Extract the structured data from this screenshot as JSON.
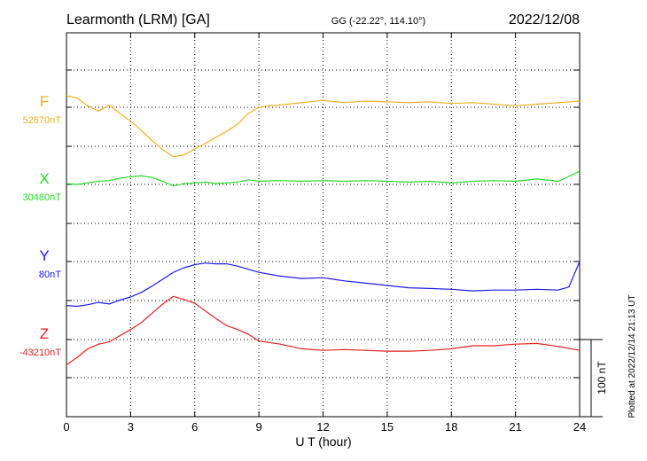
{
  "chart_data": {
    "type": "line",
    "title": "Learmonth (LRM)  [GA]",
    "coordinates": "GG (-22.22°, 114.10°)",
    "date": "2022/12/08",
    "xlabel": "U T (hour)",
    "xlim": [
      0,
      24
    ],
    "xticks": [
      0,
      3,
      6,
      9,
      12,
      15,
      18,
      21,
      24
    ],
    "scale_bar": "100 nT",
    "plotted_note": "Plotted at 2022/12/14 21:13 UT",
    "grid": true,
    "series": [
      {
        "name": "F",
        "baseline_label": "52870nT",
        "color": "#f0b020",
        "x": [
          0,
          0.5,
          1,
          1.5,
          2,
          2.5,
          3,
          3.5,
          4,
          4.5,
          5,
          5.5,
          6,
          6.5,
          7,
          7.5,
          8,
          8.5,
          9,
          9.5,
          10,
          11,
          12,
          13,
          14,
          15,
          16,
          17,
          18,
          19,
          20,
          21,
          22,
          23,
          24
        ],
        "values": [
          52885,
          52882,
          52872,
          52865,
          52873,
          52862,
          52852,
          52840,
          52827,
          52815,
          52806,
          52808,
          52816,
          52823,
          52831,
          52839,
          52848,
          52862,
          52870,
          52872,
          52873,
          52876,
          52879,
          52876,
          52878,
          52877,
          52876,
          52877,
          52875,
          52876,
          52874,
          52872,
          52874,
          52876,
          52878
        ]
      },
      {
        "name": "X",
        "baseline_label": "30480nT",
        "color": "#22dd22",
        "x": [
          0,
          0.5,
          1,
          1.5,
          2,
          2.5,
          3,
          3.5,
          4,
          4.5,
          5,
          5.5,
          6,
          6.5,
          7,
          7.5,
          8,
          8.5,
          9,
          10,
          11,
          12,
          13,
          14,
          15,
          16,
          17,
          18,
          19,
          20,
          21,
          22,
          23,
          24
        ],
        "values": [
          30481,
          30480,
          30482,
          30484,
          30485,
          30488,
          30490,
          30491,
          30489,
          30484,
          30478,
          30481,
          30482,
          30483,
          30481,
          30482,
          30483,
          30486,
          30484,
          30485,
          30484,
          30485,
          30484,
          30485,
          30484,
          30483,
          30484,
          30482,
          30484,
          30485,
          30484,
          30487,
          30484,
          30497
        ]
      },
      {
        "name": "Y",
        "baseline_label": "80nT",
        "color": "#1a1aee",
        "x": [
          0,
          0.5,
          1,
          1.5,
          2,
          2.5,
          3,
          3.5,
          4,
          4.5,
          5,
          5.5,
          6,
          6.5,
          7,
          7.5,
          8,
          8.5,
          9,
          10,
          11,
          12,
          13,
          14,
          15,
          16,
          17,
          18,
          19,
          20,
          21,
          22,
          23,
          23.5,
          24
        ],
        "values": [
          23,
          22,
          24,
          27,
          25,
          30,
          34,
          40,
          48,
          57,
          66,
          72,
          76,
          78,
          77,
          77,
          74,
          70,
          66,
          61,
          58,
          59,
          55,
          52,
          49,
          46,
          45,
          44,
          42,
          43,
          43,
          44,
          43,
          47,
          80
        ]
      },
      {
        "name": "Z",
        "baseline_label": "-43210nT",
        "color": "#e82020",
        "x": [
          0,
          0.5,
          1,
          1.5,
          2,
          2.5,
          3,
          3.5,
          4,
          4.5,
          5,
          5.5,
          6,
          6.5,
          7,
          7.5,
          8,
          8.5,
          9,
          10,
          11,
          12,
          13,
          14,
          15,
          16,
          17,
          18,
          19,
          20,
          21,
          22,
          23,
          24
        ],
        "values": [
          -43243,
          -43233,
          -43222,
          -43216,
          -43213,
          -43205,
          -43197,
          -43188,
          -43176,
          -43164,
          -43154,
          -43158,
          -43163,
          -43173,
          -43183,
          -43192,
          -43197,
          -43203,
          -43212,
          -43216,
          -43222,
          -43224,
          -43223,
          -43224,
          -43225,
          -43225,
          -43224,
          -43222,
          -43218,
          -43218,
          -43216,
          -43215,
          -43219,
          -43224
        ]
      }
    ]
  }
}
